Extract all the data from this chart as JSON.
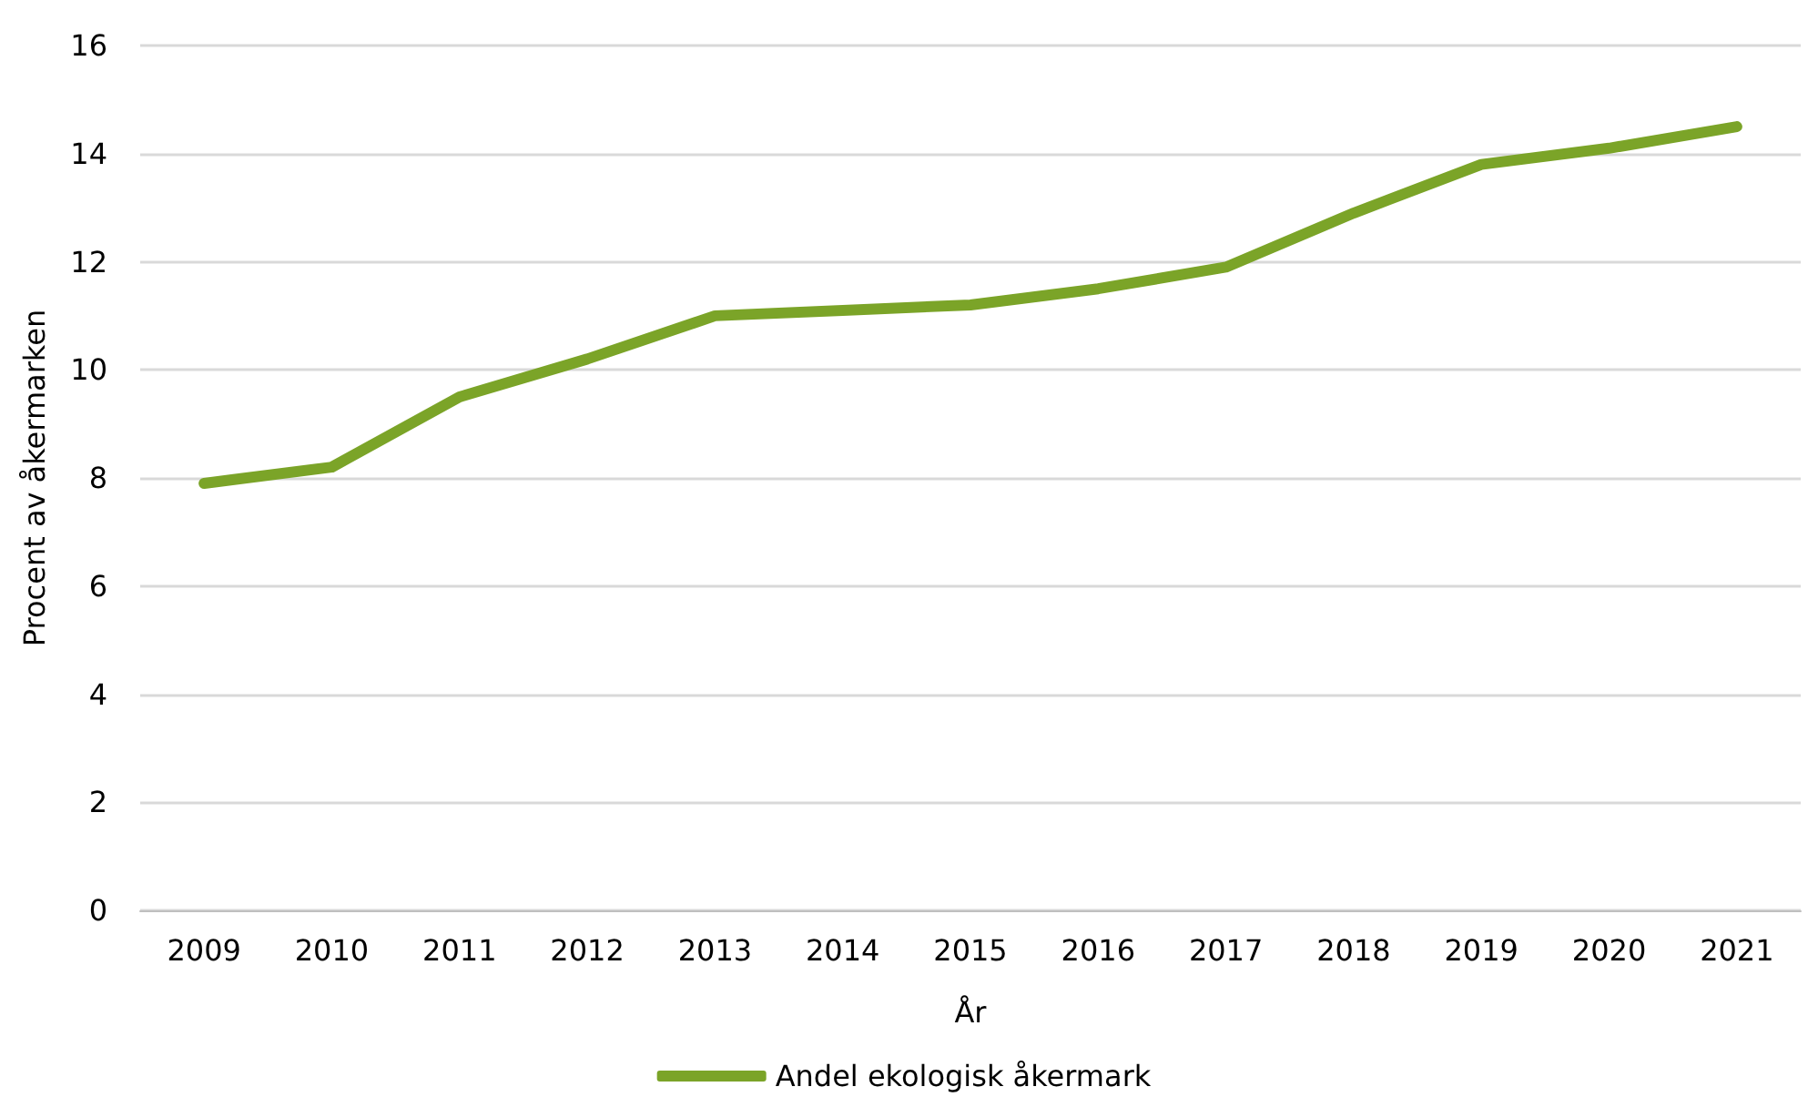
{
  "chart_data": {
    "type": "line",
    "xlabel": "År",
    "ylabel": "Procent av åkermarken",
    "categories": [
      "2009",
      "2010",
      "2011",
      "2012",
      "2013",
      "2014",
      "2015",
      "2016",
      "2017",
      "2018",
      "2019",
      "2020",
      "2021"
    ],
    "series": [
      {
        "name": "Andel ekologisk åkermark",
        "color": "#7ba428",
        "values": [
          7.9,
          8.2,
          9.5,
          10.2,
          11.0,
          11.1,
          11.2,
          11.5,
          11.9,
          12.9,
          13.8,
          14.1,
          14.5
        ]
      }
    ],
    "ylim": [
      0,
      16
    ],
    "yticks": [
      0,
      2,
      4,
      6,
      8,
      10,
      12,
      14,
      16
    ],
    "grid": "y",
    "legend": "bottom",
    "marker": "none",
    "line_style": "solid"
  }
}
